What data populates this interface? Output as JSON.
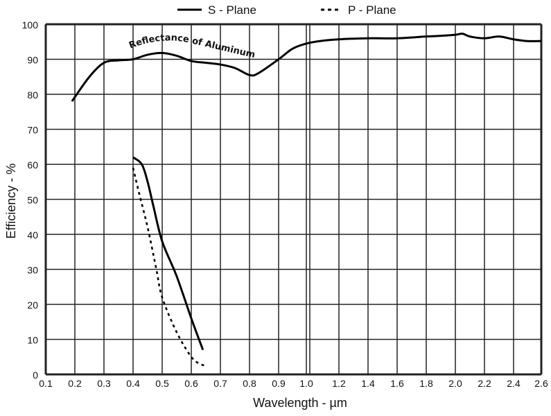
{
  "chart_data": {
    "type": "line",
    "title": "",
    "xlabel": "Wavelength - µm",
    "ylabel": "Efficiency - %",
    "ylim": [
      0,
      100
    ],
    "yticks": [
      "0",
      "10",
      "20",
      "30",
      "40",
      "50",
      "60",
      "70",
      "80",
      "90",
      "100"
    ],
    "xticks": [
      "0.1",
      "0.2",
      "0.3",
      "0.4",
      "0.5",
      "0.6",
      "0.7",
      "0.8",
      "0.9",
      "1.0",
      "1.2",
      "1.4",
      "1.6",
      "1.8",
      "2.0",
      "2.2",
      "2.4",
      "2.6"
    ],
    "xtick_values": [
      0.1,
      0.2,
      0.3,
      0.4,
      0.5,
      0.6,
      0.7,
      0.8,
      0.9,
      1.0,
      1.2,
      1.4,
      1.6,
      1.8,
      2.0,
      2.2,
      2.4,
      2.6
    ],
    "grid": true,
    "legend_placement": "top-center",
    "legend": [
      {
        "name": "S - Plane",
        "style": "solid"
      },
      {
        "name": "P - Plane",
        "style": "dotted"
      }
    ],
    "annotation": "Reflectance of Aluminum",
    "series": [
      {
        "name": "Reflectance of Aluminum",
        "style": "solid",
        "x": [
          0.19,
          0.25,
          0.3,
          0.35,
          0.4,
          0.45,
          0.5,
          0.55,
          0.6,
          0.65,
          0.7,
          0.75,
          0.8,
          0.83,
          0.9,
          0.95,
          1.0,
          1.1,
          1.2,
          1.4,
          1.6,
          1.8,
          1.9,
          2.0,
          2.05,
          2.1,
          2.2,
          2.3,
          2.4,
          2.5,
          2.6
        ],
        "y": [
          78,
          85,
          89,
          89.7,
          90,
          91.3,
          91.8,
          91,
          89.5,
          89,
          88.5,
          87.5,
          85.5,
          86,
          90,
          93,
          94.5,
          95.3,
          95.7,
          96,
          96,
          96.5,
          96.7,
          97,
          97.3,
          96.5,
          96,
          96.5,
          95.7,
          95.2,
          95.2
        ]
      },
      {
        "name": "S - Plane",
        "style": "solid",
        "x": [
          0.4,
          0.43,
          0.45,
          0.47,
          0.5,
          0.55,
          0.6,
          0.64
        ],
        "y": [
          62,
          60,
          55,
          48,
          38,
          28,
          16,
          7
        ]
      },
      {
        "name": "P - Plane",
        "style": "dotted",
        "x": [
          0.4,
          0.42,
          0.45,
          0.48,
          0.5,
          0.55,
          0.6,
          0.63,
          0.65
        ],
        "y": [
          59,
          52,
          42,
          30,
          22,
          12,
          5,
          3,
          2.5
        ]
      }
    ]
  }
}
